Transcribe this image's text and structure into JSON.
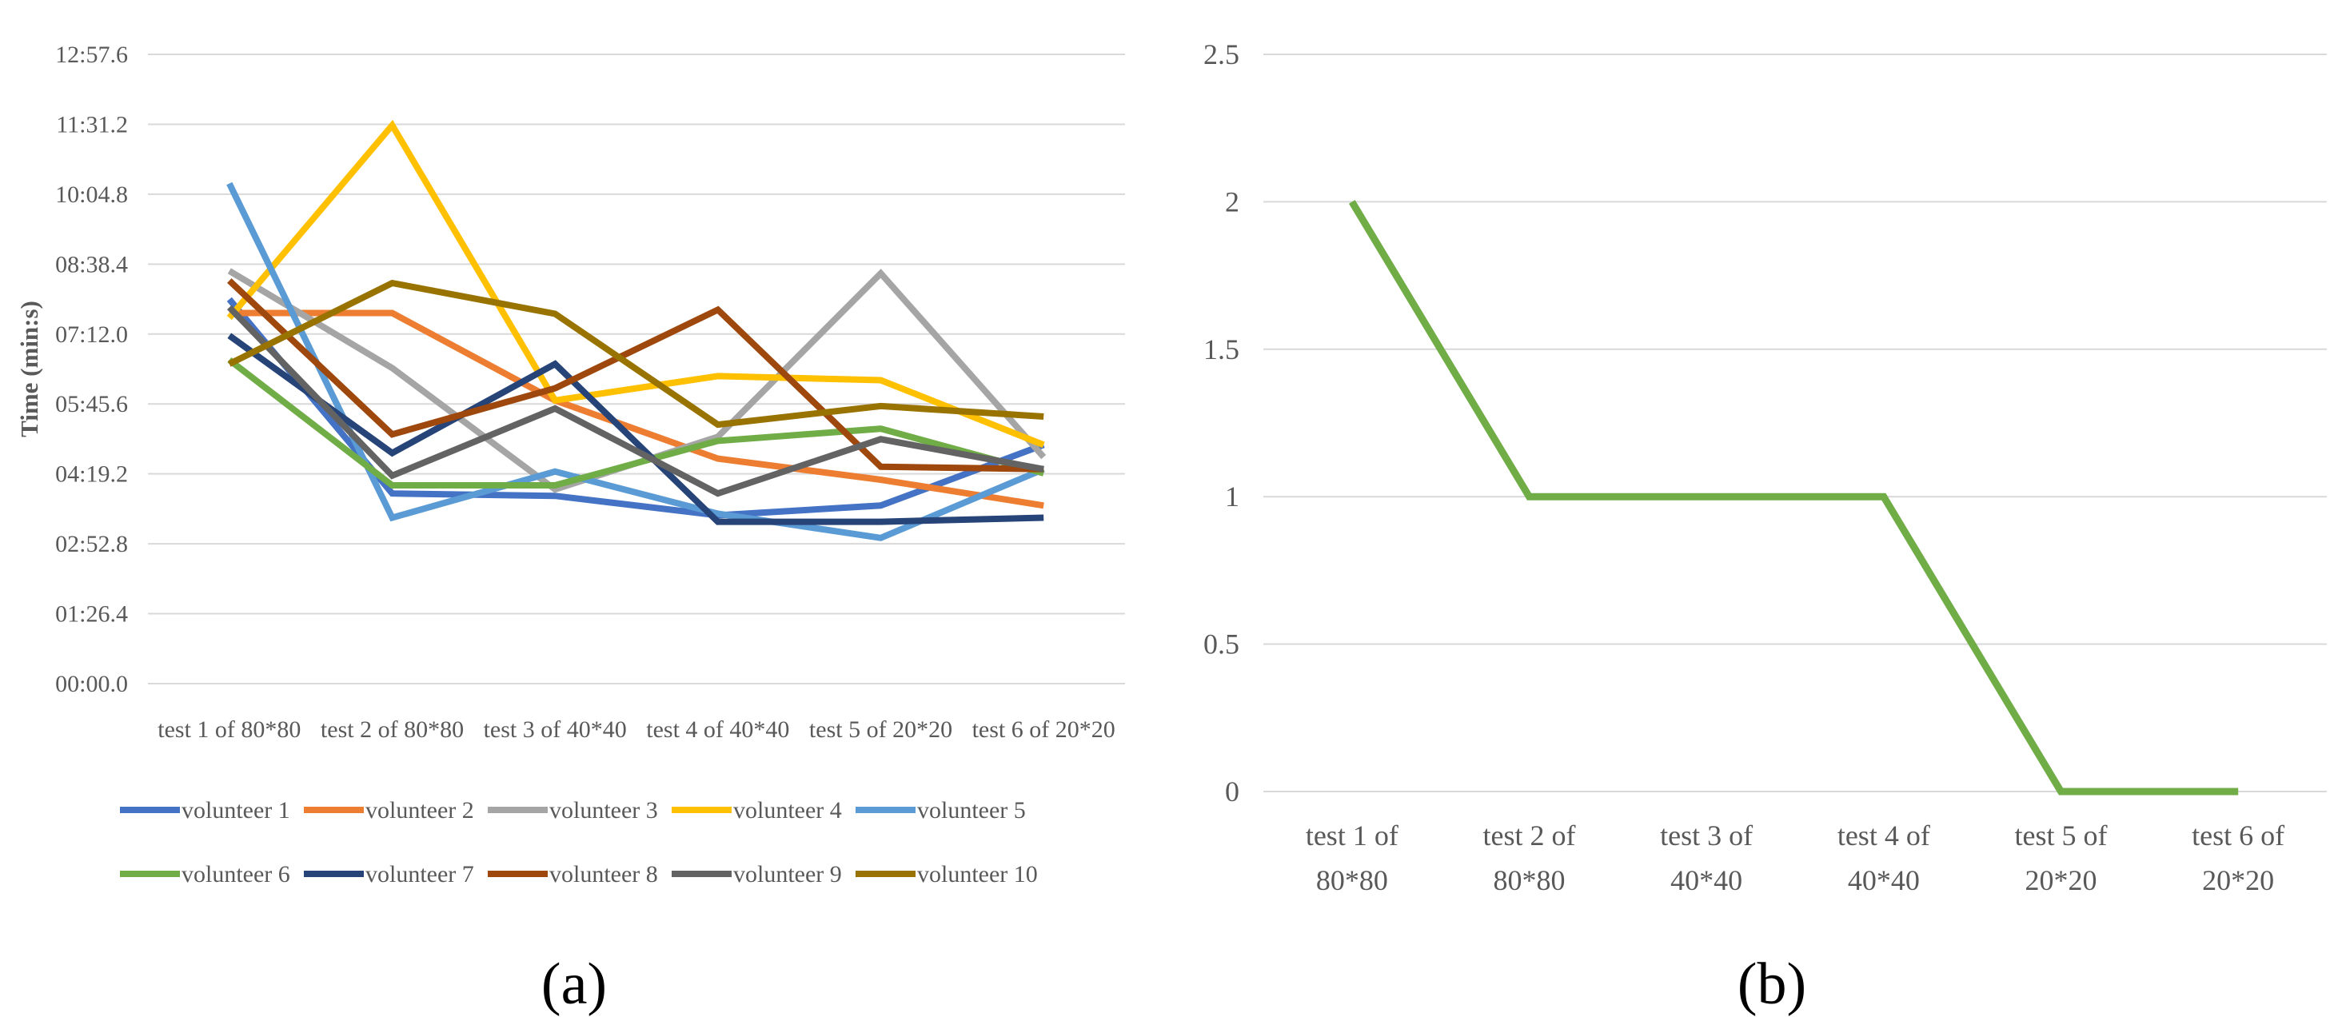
{
  "chart_data": [
    {
      "type": "line",
      "panel_label": "(a)",
      "ylabel": "Time (min:s)",
      "yticks": [
        "00:00.0",
        "01:26.4",
        "02:52.8",
        "04:19.2",
        "05:45.6",
        "07:12.0",
        "08:38.4",
        "10:04.8",
        "11:31.2",
        "12:57.6"
      ],
      "ylim_seconds": [
        0,
        777.6
      ],
      "categories": [
        "test 1 of  80*80",
        "test 2 of  80*80",
        "test 3 of  40*40",
        "test 4 of  40*40",
        "test 5 of  20*20",
        "test 6 of  20*20"
      ],
      "series": [
        {
          "name": "volunteer 1",
          "color": "#4472C4",
          "values_seconds": [
            475,
            235,
            232,
            208,
            220,
            295
          ]
        },
        {
          "name": "volunteer 2",
          "color": "#ED7D31",
          "values_seconds": [
            458,
            458,
            350,
            278,
            252,
            220
          ]
        },
        {
          "name": "volunteer 3",
          "color": "#A5A5A5",
          "values_seconds": [
            510,
            390,
            240,
            305,
            507,
            280
          ]
        },
        {
          "name": "volunteer 4",
          "color": "#FFC000",
          "values_seconds": [
            452,
            690,
            350,
            380,
            375,
            295
          ]
        },
        {
          "name": "volunteer 5",
          "color": "#5B9BD5",
          "values_seconds": [
            618,
            205,
            262,
            210,
            180,
            265
          ]
        },
        {
          "name": "volunteer 6",
          "color": "#70AD47",
          "values_seconds": [
            400,
            245,
            245,
            300,
            315,
            260
          ]
        },
        {
          "name": "volunteer 7",
          "color": "#264478",
          "values_seconds": [
            430,
            285,
            395,
            200,
            200,
            205
          ]
        },
        {
          "name": "volunteer 8",
          "color": "#9E480E",
          "values_seconds": [
            498,
            308,
            365,
            462,
            268,
            265
          ]
        },
        {
          "name": "volunteer 9",
          "color": "#636363",
          "values_seconds": [
            465,
            257,
            340,
            235,
            302,
            265
          ]
        },
        {
          "name": "volunteer 10",
          "color": "#997300",
          "values_seconds": [
            395,
            495,
            457,
            320,
            343,
            330
          ]
        }
      ]
    },
    {
      "type": "line",
      "panel_label": "(b)",
      "yticks": [
        "0",
        "0.5",
        "1",
        "1.5",
        "2",
        "2.5"
      ],
      "ylim": [
        0,
        2.5
      ],
      "categories": [
        [
          "test 1 of",
          "80*80"
        ],
        [
          "test 2 of",
          "80*80"
        ],
        [
          "test 3 of",
          "40*40"
        ],
        [
          "test 4 of",
          "40*40"
        ],
        [
          "test 5 of",
          "20*20"
        ],
        [
          "test 6 of",
          "20*20"
        ]
      ],
      "series": [
        {
          "name": "",
          "color": "#70AD47",
          "values": [
            2,
            1,
            1,
            1,
            0,
            0
          ]
        }
      ]
    }
  ]
}
